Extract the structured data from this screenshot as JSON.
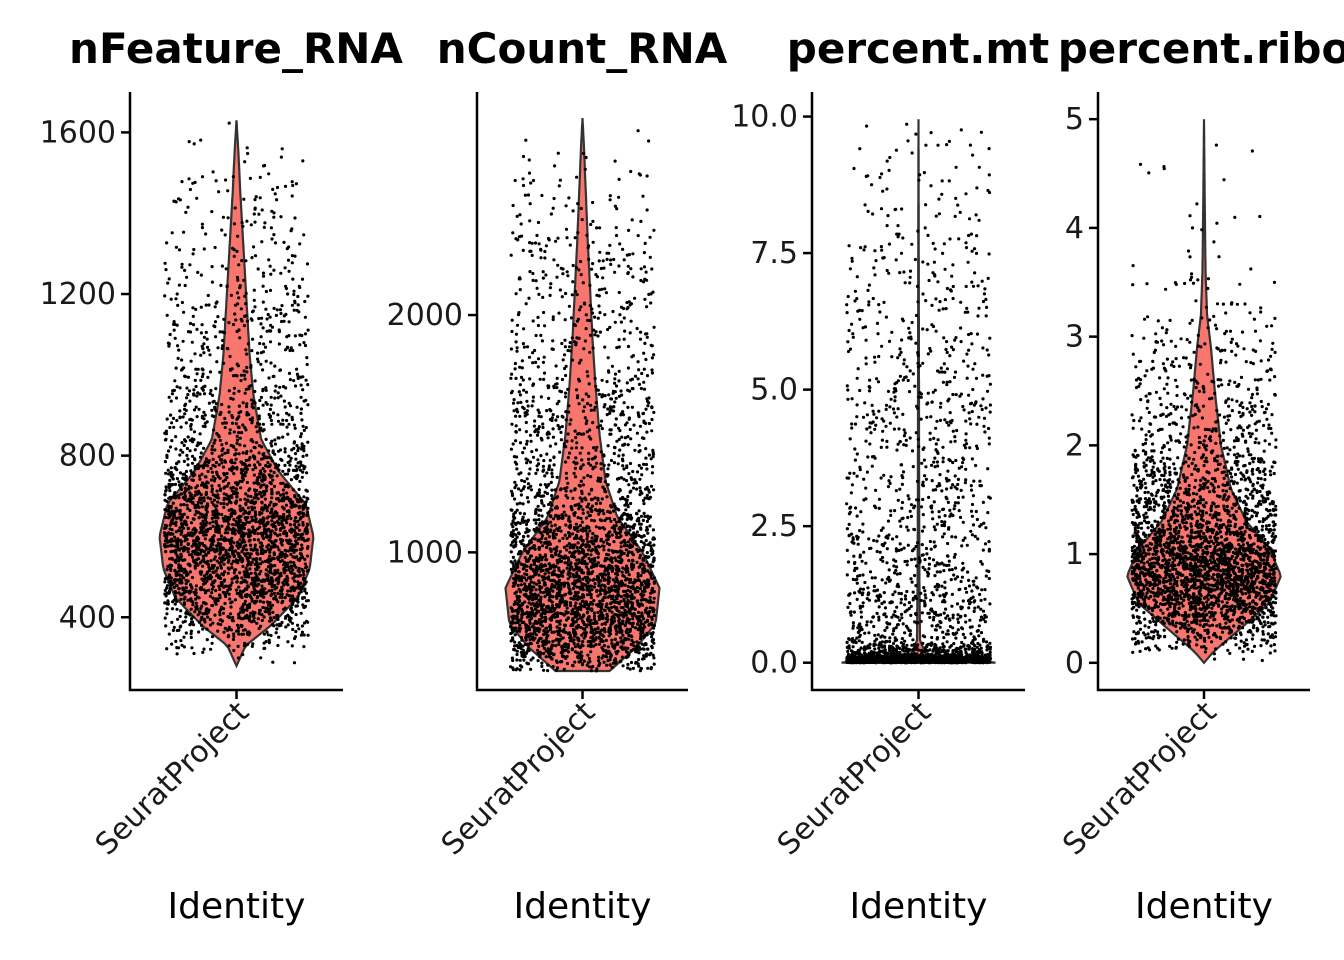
{
  "chart_data": [
    {
      "type": "violin",
      "title": "nFeature_RNA",
      "xlabel": "Identity",
      "ylabel": "",
      "categories": [
        "SeuratProject"
      ],
      "ylim": [
        220,
        1700
      ],
      "yticks": [
        400,
        800,
        1200,
        1600
      ],
      "ytick_labels": [
        "400",
        "800",
        "1200",
        "1600"
      ],
      "point_range": [
        280,
        1630
      ],
      "density_profile": [
        [
          280,
          0.0
        ],
        [
          330,
          0.12
        ],
        [
          380,
          0.45
        ],
        [
          450,
          0.8
        ],
        [
          520,
          0.95
        ],
        [
          600,
          1.0
        ],
        [
          680,
          0.9
        ],
        [
          760,
          0.55
        ],
        [
          840,
          0.32
        ],
        [
          950,
          0.22
        ],
        [
          1050,
          0.17
        ],
        [
          1150,
          0.14
        ],
        [
          1250,
          0.11
        ],
        [
          1350,
          0.08
        ],
        [
          1450,
          0.05
        ],
        [
          1550,
          0.025
        ],
        [
          1630,
          0.0
        ]
      ],
      "fill_color": "#F8766D",
      "point_color": "#000000",
      "n_points": 3000
    },
    {
      "type": "violin",
      "title": "nCount_RNA",
      "xlabel": "Identity",
      "ylabel": "",
      "categories": [
        "SeuratProject"
      ],
      "ylim": [
        420,
        2940
      ],
      "yticks": [
        1000,
        2000
      ],
      "ytick_labels": [
        "1000",
        "2000"
      ],
      "point_range": [
        500,
        2830
      ],
      "density_profile": [
        [
          500,
          0.35
        ],
        [
          600,
          0.7
        ],
        [
          700,
          0.95
        ],
        [
          850,
          1.0
        ],
        [
          1000,
          0.78
        ],
        [
          1150,
          0.45
        ],
        [
          1300,
          0.3
        ],
        [
          1500,
          0.22
        ],
        [
          1700,
          0.17
        ],
        [
          1900,
          0.13
        ],
        [
          2100,
          0.1
        ],
        [
          2300,
          0.07
        ],
        [
          2500,
          0.045
        ],
        [
          2700,
          0.02
        ],
        [
          2830,
          0.0
        ]
      ],
      "fill_color": "#F8766D",
      "point_color": "#000000",
      "n_points": 3200
    },
    {
      "type": "violin",
      "title": "percent.mt",
      "xlabel": "Identity",
      "ylabel": "",
      "categories": [
        "SeuratProject"
      ],
      "ylim": [
        -0.5,
        10.45
      ],
      "yticks": [
        0.0,
        2.5,
        5.0,
        7.5,
        10.0
      ],
      "ytick_labels": [
        "0.0",
        "2.5",
        "5.0",
        "7.5",
        "10.0"
      ],
      "point_range": [
        0,
        9.95
      ],
      "density_profile": [
        [
          0,
          1.0
        ],
        [
          0.05,
          0.8
        ],
        [
          0.15,
          0.1
        ],
        [
          0.4,
          0.02
        ],
        [
          1.5,
          0.012
        ],
        [
          3,
          0.008
        ],
        [
          6,
          0.005
        ],
        [
          9.95,
          0.0
        ]
      ],
      "fill_color": "#F8766D",
      "point_color": "#000000",
      "n_points": 3000
    },
    {
      "type": "violin",
      "title": "percent.ribo",
      "xlabel": "Identity",
      "ylabel": "",
      "categories": [
        "SeuratProject"
      ],
      "ylim": [
        -0.25,
        5.25
      ],
      "yticks": [
        0,
        1,
        2,
        3,
        4,
        5
      ],
      "ytick_labels": [
        "0",
        "1",
        "2",
        "3",
        "4",
        "5"
      ],
      "point_range": [
        0,
        5.0
      ],
      "density_profile": [
        [
          0,
          0.0
        ],
        [
          0.1,
          0.12
        ],
        [
          0.3,
          0.45
        ],
        [
          0.55,
          0.85
        ],
        [
          0.8,
          1.0
        ],
        [
          1.05,
          0.85
        ],
        [
          1.3,
          0.55
        ],
        [
          1.6,
          0.35
        ],
        [
          2.0,
          0.22
        ],
        [
          2.5,
          0.14
        ],
        [
          2.9,
          0.09
        ],
        [
          3.2,
          0.04
        ],
        [
          3.6,
          0.02
        ],
        [
          4.2,
          0.01
        ],
        [
          5.0,
          0.0
        ]
      ],
      "fill_color": "#F8766D",
      "point_color": "#000000",
      "n_points": 3000
    }
  ]
}
